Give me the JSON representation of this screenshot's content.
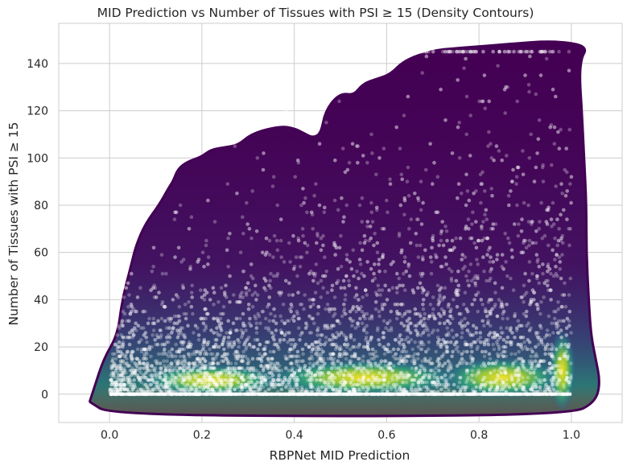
{
  "chart_data": {
    "type": "scatter",
    "title": "MID Prediction vs Number of Tissues with PSI ≥ 15 (Density Contours)",
    "xlabel": "RBPNet MID Prediction",
    "ylabel": "Number of Tissues with PSI ≥ 15",
    "xlim": [
      -0.11,
      1.11
    ],
    "ylim": [
      -12,
      157
    ],
    "x_ticks": [
      0.0,
      0.2,
      0.4,
      0.6,
      0.8,
      1.0
    ],
    "x_tick_labels": [
      "0.0",
      "0.2",
      "0.4",
      "0.6",
      "0.8",
      "1.0"
    ],
    "y_ticks": [
      0,
      20,
      40,
      60,
      80,
      100,
      120,
      140
    ],
    "y_tick_labels": [
      "0",
      "20",
      "40",
      "60",
      "80",
      "100",
      "120",
      "140"
    ],
    "grid": true,
    "legend": "none",
    "density_outline": [
      [
        -0.04,
        -3
      ],
      [
        -0.03,
        3
      ],
      [
        -0.01,
        15
      ],
      [
        0.02,
        25
      ],
      [
        0.03,
        40
      ],
      [
        0.05,
        55
      ],
      [
        0.06,
        63
      ],
      [
        0.08,
        72
      ],
      [
        0.11,
        80
      ],
      [
        0.13,
        87
      ],
      [
        0.14,
        90
      ],
      [
        0.15,
        95
      ],
      [
        0.17,
        98
      ],
      [
        0.2,
        100
      ],
      [
        0.22,
        103
      ],
      [
        0.25,
        104
      ],
      [
        0.28,
        105
      ],
      [
        0.31,
        110
      ],
      [
        0.37,
        113
      ],
      [
        0.4,
        112
      ],
      [
        0.42,
        110
      ],
      [
        0.44,
        108
      ],
      [
        0.46,
        110
      ],
      [
        0.47,
        120
      ],
      [
        0.5,
        127
      ],
      [
        0.53,
        126
      ],
      [
        0.55,
        131
      ],
      [
        0.58,
        133
      ],
      [
        0.61,
        135
      ],
      [
        0.64,
        141
      ],
      [
        0.7,
        145
      ],
      [
        0.75,
        146
      ],
      [
        0.82,
        147
      ],
      [
        0.88,
        148
      ],
      [
        0.95,
        149
      ],
      [
        1.01,
        148
      ],
      [
        1.03,
        146
      ],
      [
        1.02,
        143
      ],
      [
        1.015,
        135
      ],
      [
        1.02,
        120
      ],
      [
        1.025,
        100
      ],
      [
        1.03,
        80
      ],
      [
        1.03,
        60
      ],
      [
        1.035,
        40
      ],
      [
        1.04,
        25
      ],
      [
        1.05,
        15
      ],
      [
        1.06,
        5
      ],
      [
        1.05,
        -3
      ],
      [
        1.0,
        -8
      ],
      [
        0.5,
        -9
      ],
      [
        0.0,
        -8
      ],
      [
        -0.04,
        -3
      ]
    ],
    "density_colormap": [
      "#440154",
      "#3b528b",
      "#21918c",
      "#5ec962",
      "#fde725"
    ],
    "point_color": "#ffffff",
    "point_count_shown": 6000,
    "points_note_x_range": [
      0.0,
      1.0
    ],
    "points_note_y_range": [
      0,
      145
    ]
  }
}
